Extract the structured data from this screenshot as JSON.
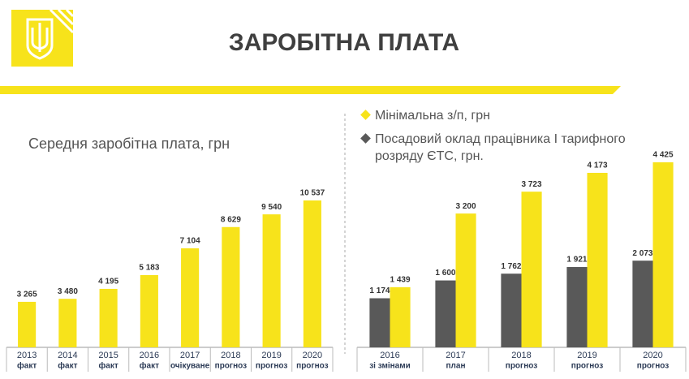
{
  "header": {
    "title": "ЗАРОБІТНА ПЛАТА"
  },
  "chart_data": [
    {
      "type": "bar",
      "title": "Середня заробітна плата, грн",
      "categories": [
        "2013",
        "2014",
        "2015",
        "2016",
        "2017",
        "2018",
        "2019",
        "2020"
      ],
      "category_sublabels": [
        "факт",
        "факт",
        "факт",
        "факт",
        "очікуване",
        "прогноз",
        "прогноз",
        "прогноз"
      ],
      "values": [
        3265,
        3480,
        4195,
        5183,
        7104,
        8629,
        9540,
        10537
      ],
      "value_labels": [
        "3 265",
        "3 480",
        "4 195",
        "5 183",
        "7 104",
        "8 629",
        "9 540",
        "10 537"
      ],
      "color": "#f7e31b"
    },
    {
      "type": "bar",
      "categories": [
        "2016",
        "2017",
        "2018",
        "2019",
        "2020"
      ],
      "category_sublabels": [
        "зі змінами",
        "план",
        "прогноз",
        "прогноз",
        "прогноз"
      ],
      "series": [
        {
          "name": "Посадовий оклад працівника І тарифного розряду ЄТС, грн.",
          "color": "#595959",
          "values": [
            1174,
            1600,
            1762,
            1921,
            2073
          ],
          "value_labels": [
            "1 174",
            "1 600",
            "1 762",
            "1 921",
            "2 073"
          ]
        },
        {
          "name": "Мінімальна з/п, грн",
          "color": "#f7e31b",
          "values": [
            1439,
            3200,
            3723,
            4173,
            4425
          ],
          "value_labels": [
            "1 439",
            "3 200",
            "3 723",
            "4 173",
            "4 425"
          ]
        }
      ]
    }
  ]
}
